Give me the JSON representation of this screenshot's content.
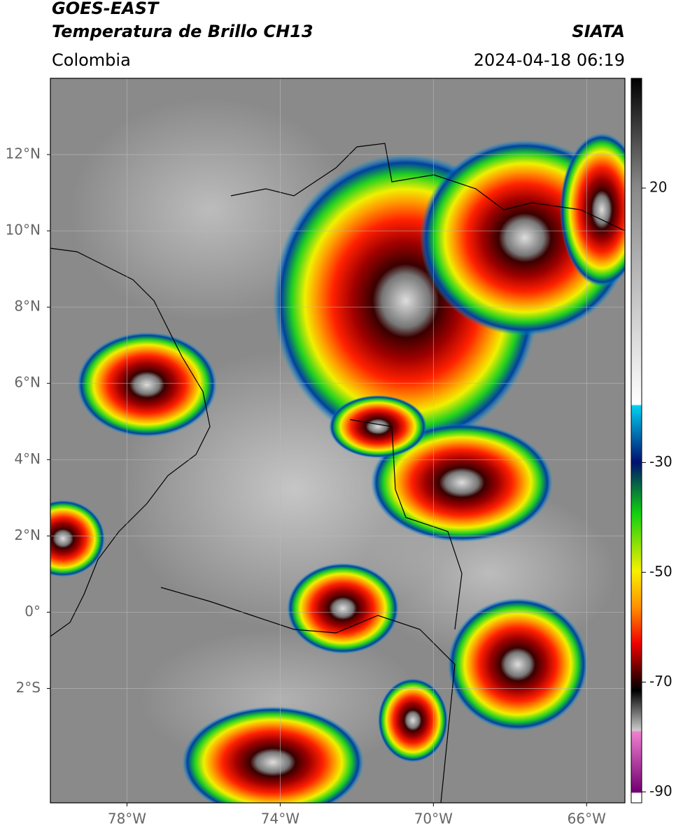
{
  "header": {
    "title": "GOES-EAST",
    "subtitle": "Temperatura de Brillo CH13",
    "source": "SIATA",
    "region": "Colombia",
    "datetime": "2024-04-18 06:19"
  },
  "map": {
    "xlim": [
      -80,
      -65
    ],
    "ylim": [
      -5,
      14
    ],
    "xticks": [
      {
        "value": -78,
        "label": "78°W"
      },
      {
        "value": -74,
        "label": "74°W"
      },
      {
        "value": -70,
        "label": "70°W"
      },
      {
        "value": -66,
        "label": "66°W"
      }
    ],
    "yticks": [
      {
        "value": 12,
        "label": "12°N"
      },
      {
        "value": 10,
        "label": "10°N"
      },
      {
        "value": 8,
        "label": "8°N"
      },
      {
        "value": 6,
        "label": "6°N"
      },
      {
        "value": 4,
        "label": "4°N"
      },
      {
        "value": 2,
        "label": "2°N"
      },
      {
        "value": 0,
        "label": "0°"
      },
      {
        "value": -2,
        "label": "2°S"
      }
    ],
    "grid": true
  },
  "colorbar": {
    "clim": [
      -92,
      40
    ],
    "ticks": [
      20,
      -30,
      -50,
      -70,
      -90
    ]
  }
}
